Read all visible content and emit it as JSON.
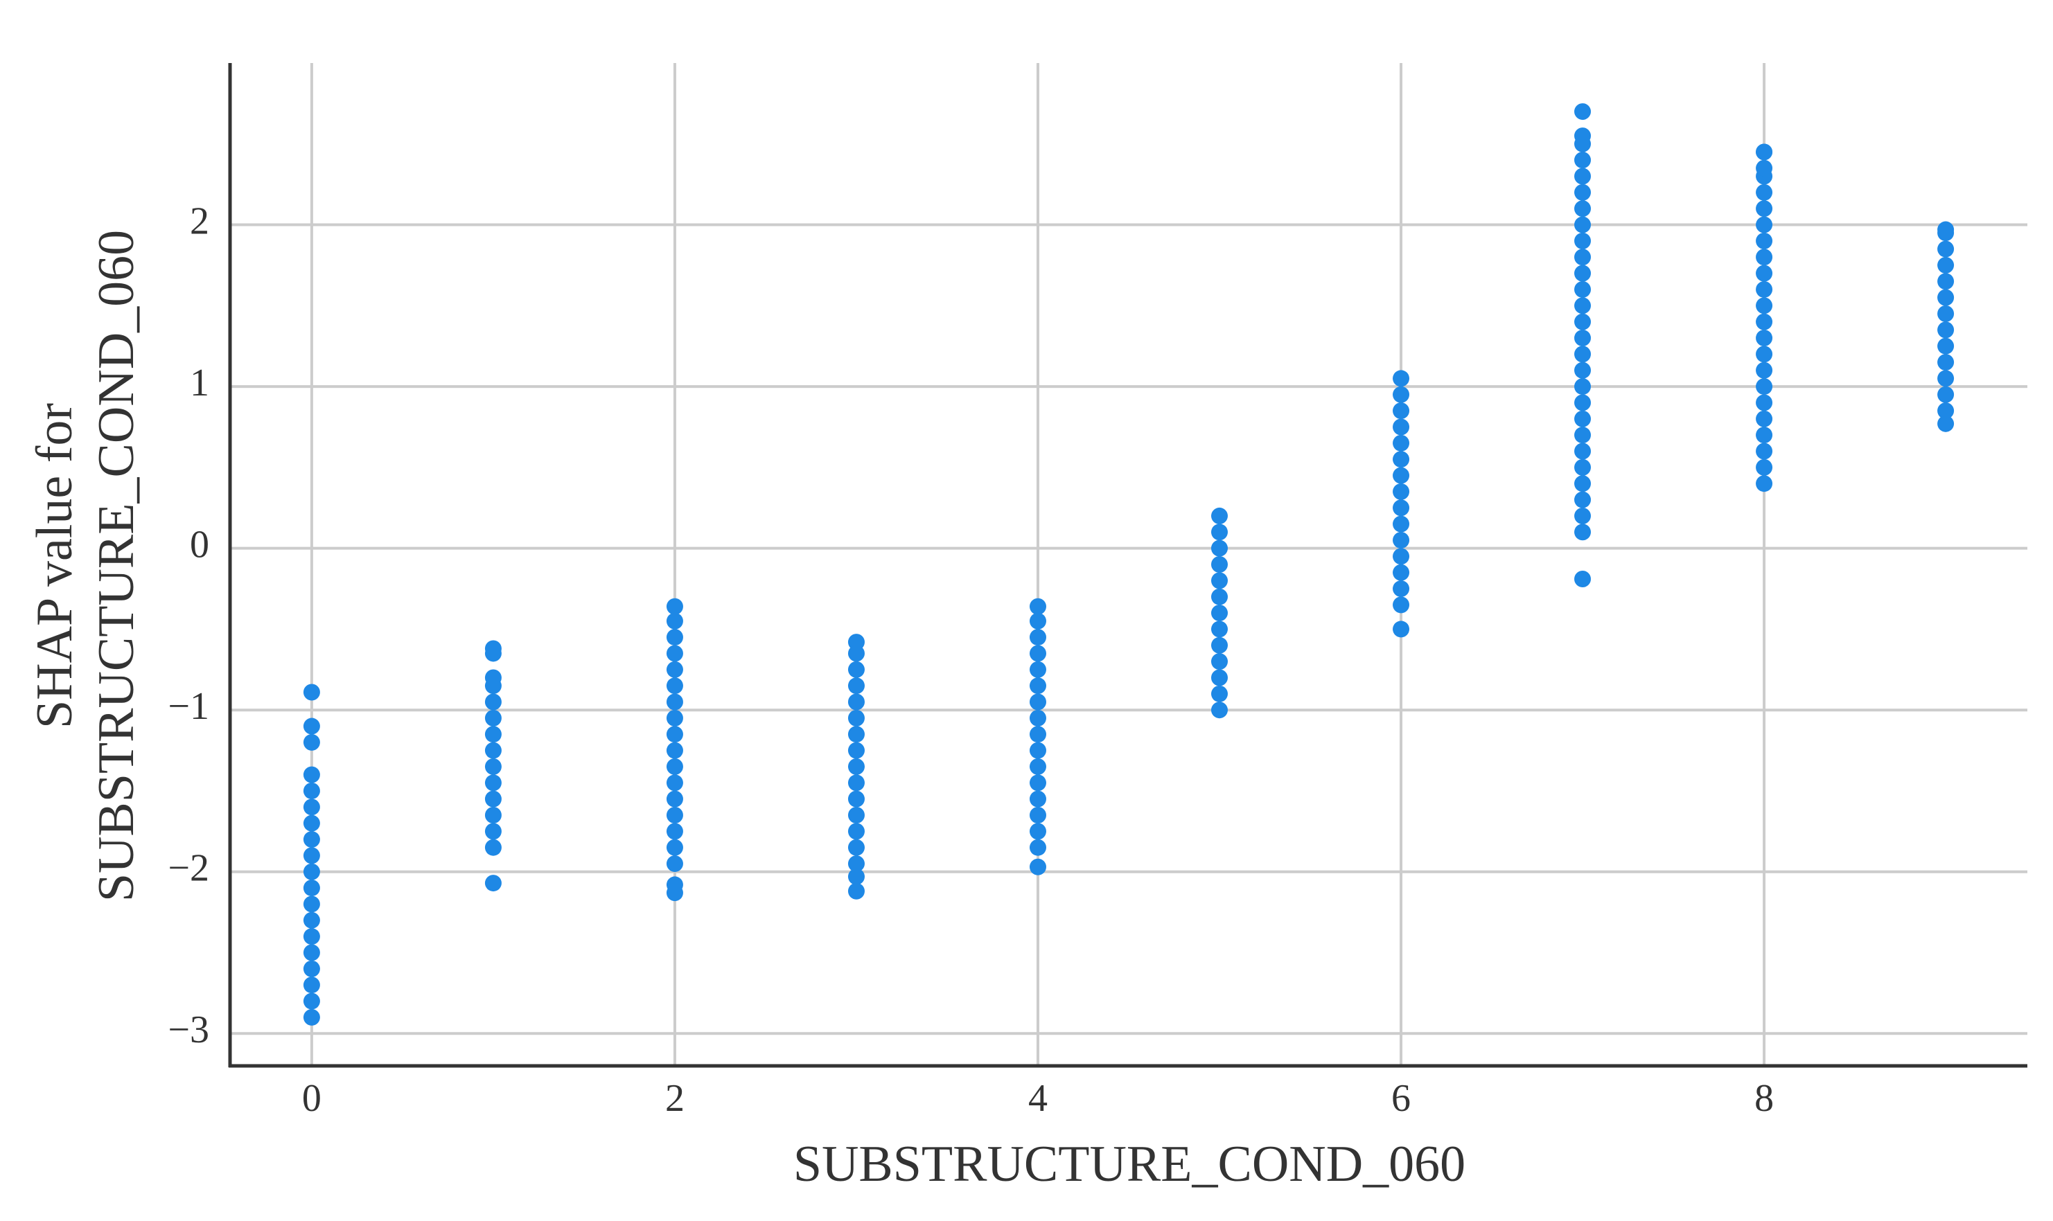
{
  "chart_data": {
    "type": "scatter",
    "x_label": "SUBSTRUCTURE_COND_060",
    "y_label": [
      "SHAP value for",
      "SUBSTRUCTURE_COND_060"
    ],
    "color": "#1e88e5",
    "grid": true,
    "xlim": [
      -0.45,
      9.45
    ],
    "xticks": [
      0,
      2,
      4,
      6,
      8
    ],
    "ylim": [
      -3.2,
      3.0
    ],
    "yticks": [
      {
        "value": -3,
        "label": "−3"
      },
      {
        "value": -2,
        "label": "−2"
      },
      {
        "value": -1,
        "label": "−1"
      },
      0,
      1,
      2
    ],
    "x": [
      0,
      0,
      0,
      0,
      0,
      0,
      0,
      0,
      0,
      0,
      0,
      0,
      0,
      0,
      0,
      0,
      0,
      0,
      0,
      1,
      1,
      1,
      1,
      1,
      1,
      1,
      1,
      1,
      1,
      1,
      1,
      1,
      1,
      1,
      2,
      2,
      2,
      2,
      2,
      2,
      2,
      2,
      2,
      2,
      2,
      2,
      2,
      2,
      2,
      2,
      2,
      2,
      2,
      3,
      3,
      3,
      3,
      3,
      3,
      3,
      3,
      3,
      3,
      3,
      3,
      3,
      3,
      3,
      3,
      3,
      4,
      4,
      4,
      4,
      4,
      4,
      4,
      4,
      4,
      4,
      4,
      4,
      4,
      4,
      4,
      4,
      4,
      5,
      5,
      5,
      5,
      5,
      5,
      5,
      5,
      5,
      5,
      5,
      5,
      5,
      6,
      6,
      6,
      6,
      6,
      6,
      6,
      6,
      6,
      6,
      6,
      6,
      6,
      6,
      6,
      6,
      7,
      7,
      7,
      7,
      7,
      7,
      7,
      7,
      7,
      7,
      7,
      7,
      7,
      7,
      7,
      7,
      7,
      7,
      7,
      7,
      7,
      7,
      7,
      7,
      7,
      7,
      7,
      7,
      8,
      8,
      8,
      8,
      8,
      8,
      8,
      8,
      8,
      8,
      8,
      8,
      8,
      8,
      8,
      8,
      8,
      8,
      8,
      8,
      8,
      8,
      8,
      9,
      9,
      9,
      9,
      9,
      9,
      9,
      9,
      9,
      9,
      9,
      9,
      9,
      9
    ],
    "values": [
      -2.9,
      -2.8,
      -2.7,
      -2.6,
      -2.5,
      -2.4,
      -2.3,
      -2.2,
      -2.1,
      -2.0,
      -1.9,
      -1.8,
      -1.7,
      -1.6,
      -1.5,
      -1.4,
      -1.2,
      -1.1,
      -0.89,
      -2.07,
      -1.85,
      -1.75,
      -1.65,
      -1.55,
      -1.45,
      -1.35,
      -1.25,
      -1.15,
      -1.05,
      -0.95,
      -0.85,
      -0.8,
      -0.65,
      -0.62,
      -2.13,
      -2.08,
      -1.95,
      -1.85,
      -1.75,
      -1.65,
      -1.55,
      -1.45,
      -1.35,
      -1.25,
      -1.15,
      -1.05,
      -0.95,
      -0.85,
      -0.75,
      -0.65,
      -0.55,
      -0.45,
      -0.36,
      -2.12,
      -2.03,
      -1.95,
      -1.85,
      -1.75,
      -1.65,
      -1.55,
      -1.45,
      -1.35,
      -1.25,
      -1.15,
      -1.05,
      -0.95,
      -0.85,
      -0.75,
      -0.65,
      -0.58,
      -1.97,
      -1.85,
      -1.75,
      -1.65,
      -1.55,
      -1.45,
      -1.35,
      -1.25,
      -1.15,
      -1.05,
      -0.95,
      -0.85,
      -0.75,
      -0.65,
      -0.55,
      -0.45,
      -0.36,
      -1.0,
      -0.9,
      -0.8,
      -0.7,
      -0.6,
      -0.5,
      -0.4,
      -0.3,
      -0.2,
      -0.1,
      0.0,
      0.1,
      0.2,
      -0.5,
      -0.35,
      -0.25,
      -0.15,
      -0.05,
      0.05,
      0.15,
      0.25,
      0.35,
      0.45,
      0.55,
      0.65,
      0.75,
      0.85,
      0.95,
      1.05,
      -0.19,
      0.1,
      0.2,
      0.3,
      0.4,
      0.5,
      0.6,
      0.7,
      0.8,
      0.9,
      1.0,
      1.1,
      1.2,
      1.3,
      1.4,
      1.5,
      1.6,
      1.7,
      1.8,
      1.9,
      2.0,
      2.1,
      2.2,
      2.3,
      2.4,
      2.5,
      2.55,
      2.7,
      0.4,
      0.5,
      0.6,
      0.7,
      0.8,
      0.9,
      1.0,
      1.1,
      1.2,
      1.3,
      1.4,
      1.5,
      1.6,
      1.7,
      1.8,
      1.9,
      2.0,
      2.1,
      2.2,
      2.3,
      2.35,
      2.45,
      2.45,
      0.77,
      0.85,
      0.95,
      1.05,
      1.15,
      1.25,
      1.35,
      1.45,
      1.55,
      1.65,
      1.75,
      1.85,
      1.95,
      1.97
    ]
  }
}
